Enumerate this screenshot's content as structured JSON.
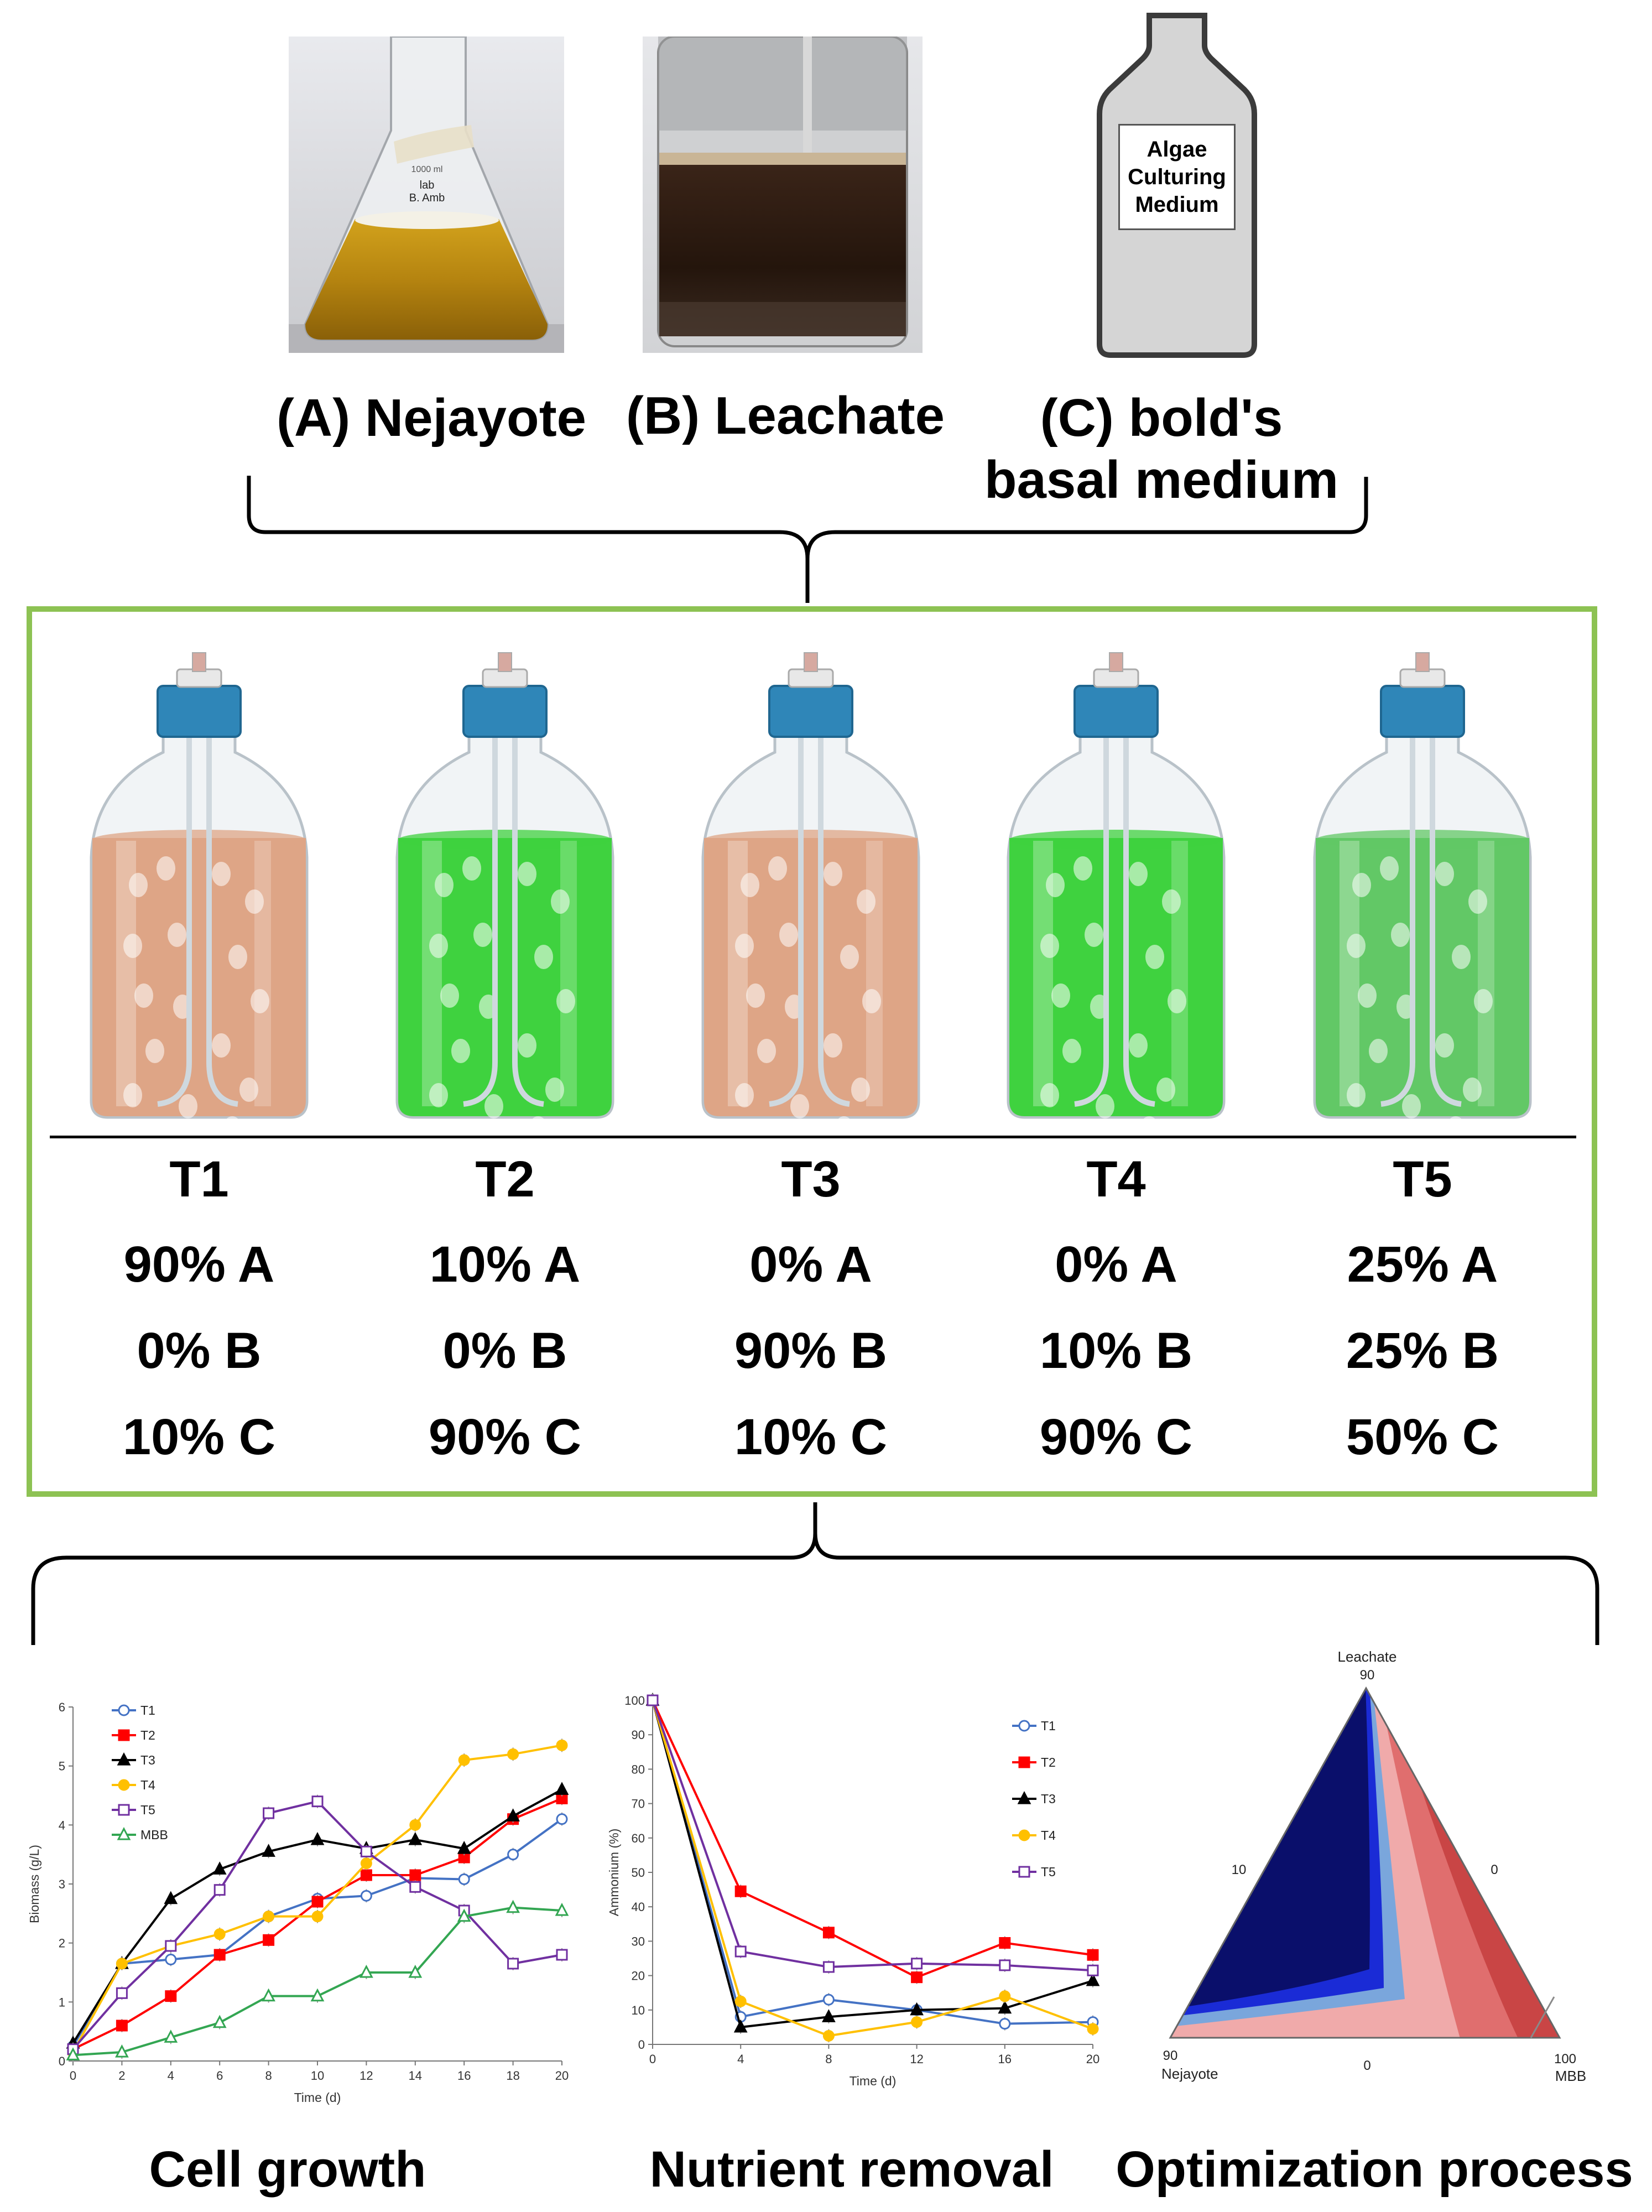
{
  "sources": [
    {
      "id": "A",
      "label": "(A) Nejayote"
    },
    {
      "id": "B",
      "label": "(B) Leachate"
    },
    {
      "id": "C",
      "label_line1": "(C) bold's",
      "label_line2": "basal medium"
    }
  ],
  "bottle_label": {
    "line1": "Algae",
    "line2": "Culturing",
    "line3": "Medium"
  },
  "flask_marks": {
    "vol": "1000 ml",
    "line1": "lab",
    "line2": "B. Amb"
  },
  "treatments": [
    {
      "name": "T1",
      "a": "90% A",
      "b": "0% B",
      "c": "10% C",
      "liquid": "#dea586"
    },
    {
      "name": "T2",
      "a": "10% A",
      "b": "0% B",
      "c": "90% C",
      "liquid": "#3fd23f"
    },
    {
      "name": "T3",
      "a": "0% A",
      "b": "90% B",
      "c": "10% C",
      "liquid": "#dea586"
    },
    {
      "name": "T4",
      "a": "0% A",
      "b": "10% B",
      "c": "90% C",
      "liquid": "#3fd23f"
    },
    {
      "name": "T5",
      "a": "25% A",
      "b": "25% B",
      "c": "50% C",
      "liquid": "#62c866"
    }
  ],
  "captions": {
    "growth": "Cell growth",
    "nutrient": "Nutrient removal",
    "optimization": "Optimization process"
  },
  "chart_data": [
    {
      "type": "line",
      "title": "",
      "xlabel": "Time (d)",
      "ylabel": "Biomass (g/L)",
      "xlim": [
        0,
        20
      ],
      "ylim": [
        0,
        6
      ],
      "xticks": [
        "0",
        "2",
        "4",
        "6",
        "8",
        "10",
        "12",
        "14",
        "16",
        "18",
        "20"
      ],
      "yticks": [
        "0",
        "1",
        "2",
        "3",
        "4",
        "5",
        "6"
      ],
      "x": [
        0,
        2,
        4,
        6,
        8,
        10,
        12,
        14,
        16,
        18,
        20
      ],
      "series": [
        {
          "name": "T1",
          "color": "#4472c4",
          "marker": "circle-open",
          "values": [
            0.25,
            1.65,
            1.72,
            1.8,
            2.45,
            2.75,
            2.8,
            3.1,
            3.08,
            3.5,
            4.1
          ]
        },
        {
          "name": "T2",
          "color": "#ff0000",
          "marker": "square",
          "values": [
            0.2,
            0.6,
            1.1,
            1.8,
            2.05,
            2.7,
            3.15,
            3.15,
            3.45,
            4.1,
            4.45
          ]
        },
        {
          "name": "T3",
          "color": "#000000",
          "marker": "triangle",
          "values": [
            0.3,
            1.65,
            2.75,
            3.25,
            3.55,
            3.75,
            3.6,
            3.75,
            3.6,
            4.15,
            4.6
          ]
        },
        {
          "name": "T4",
          "color": "#ffc000",
          "marker": "circle",
          "values": [
            0.15,
            1.65,
            1.95,
            2.15,
            2.45,
            2.45,
            3.35,
            4.0,
            5.1,
            5.2,
            5.35
          ]
        },
        {
          "name": "T5",
          "color": "#7030a0",
          "marker": "square-open",
          "values": [
            0.2,
            1.15,
            1.95,
            2.9,
            4.2,
            4.4,
            3.55,
            2.95,
            2.55,
            1.65,
            1.8
          ]
        },
        {
          "name": "MBB",
          "color": "#33a652",
          "marker": "triangle-open",
          "values": [
            0.1,
            0.15,
            0.4,
            0.65,
            1.1,
            1.1,
            1.5,
            1.5,
            2.45,
            2.6,
            2.55
          ]
        }
      ]
    },
    {
      "type": "line",
      "title": "",
      "xlabel": "Time (d)",
      "ylabel": "Ammonium (%)",
      "xlim": [
        0,
        20
      ],
      "ylim": [
        0,
        100
      ],
      "xticks": [
        "0",
        "4",
        "8",
        "12",
        "16",
        "20"
      ],
      "yticks": [
        "0",
        "10",
        "20",
        "30",
        "40",
        "50",
        "60",
        "70",
        "80",
        "90",
        "100"
      ],
      "x": [
        0,
        4,
        8,
        12,
        16,
        20
      ],
      "series": [
        {
          "name": "T1",
          "color": "#4472c4",
          "marker": "circle-open",
          "values": [
            100,
            8,
            13,
            10,
            6,
            6.5
          ]
        },
        {
          "name": "T2",
          "color": "#ff0000",
          "marker": "square",
          "values": [
            100,
            44.5,
            32.5,
            19.5,
            29.5,
            26
          ]
        },
        {
          "name": "T3",
          "color": "#000000",
          "marker": "triangle",
          "values": [
            100,
            5,
            8,
            10,
            10.5,
            18.5
          ]
        },
        {
          "name": "T4",
          "color": "#ffc000",
          "marker": "circle",
          "values": [
            100,
            12.5,
            2.5,
            6.5,
            14,
            4.5
          ]
        },
        {
          "name": "T5",
          "color": "#7030a0",
          "marker": "square-open",
          "values": [
            100,
            27,
            22.5,
            23.5,
            23,
            21.5
          ]
        }
      ]
    },
    {
      "type": "contour",
      "title": "",
      "vertices": {
        "top": "Leachate",
        "left": "Nejayote",
        "right": "MBB"
      },
      "vertex_values": {
        "top": "90",
        "left": "90",
        "right": "100"
      },
      "edge_values": {
        "left": "10",
        "right": "0",
        "bottom": "0"
      },
      "bands": [
        "#0a0f6b",
        "#1a2bd6",
        "#7aa6dc",
        "#f0aaaa",
        "#e06e6e",
        "#c94545",
        "#5a0d14"
      ]
    }
  ]
}
